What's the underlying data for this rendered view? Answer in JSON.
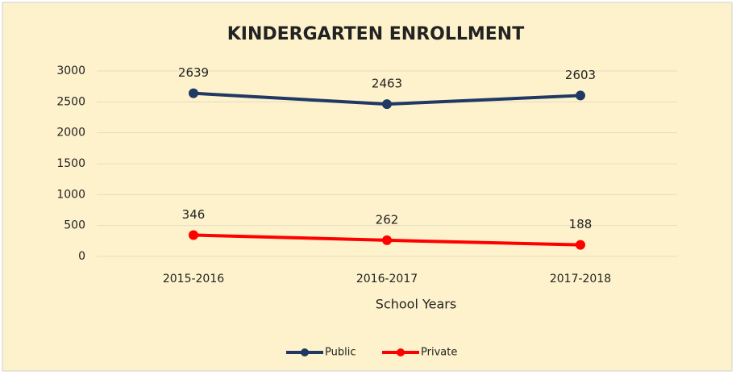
{
  "chart_data": {
    "type": "line",
    "title": "KINDERGARTEN ENROLLMENT",
    "x_label": "School Years",
    "categories": [
      "2015-2016",
      "2016-2017",
      "2017-2018"
    ],
    "series": [
      {
        "name": "Public",
        "color": "#1f3864",
        "values": [
          2639,
          2463,
          2603
        ]
      },
      {
        "name": "Private",
        "color": "#ff0000",
        "values": [
          346,
          262,
          188
        ]
      }
    ],
    "ylim": [
      0,
      3000
    ],
    "yticks": [
      0,
      500,
      1000,
      1500,
      2000,
      2500,
      3000
    ],
    "grid": true,
    "legend": "bottom"
  }
}
